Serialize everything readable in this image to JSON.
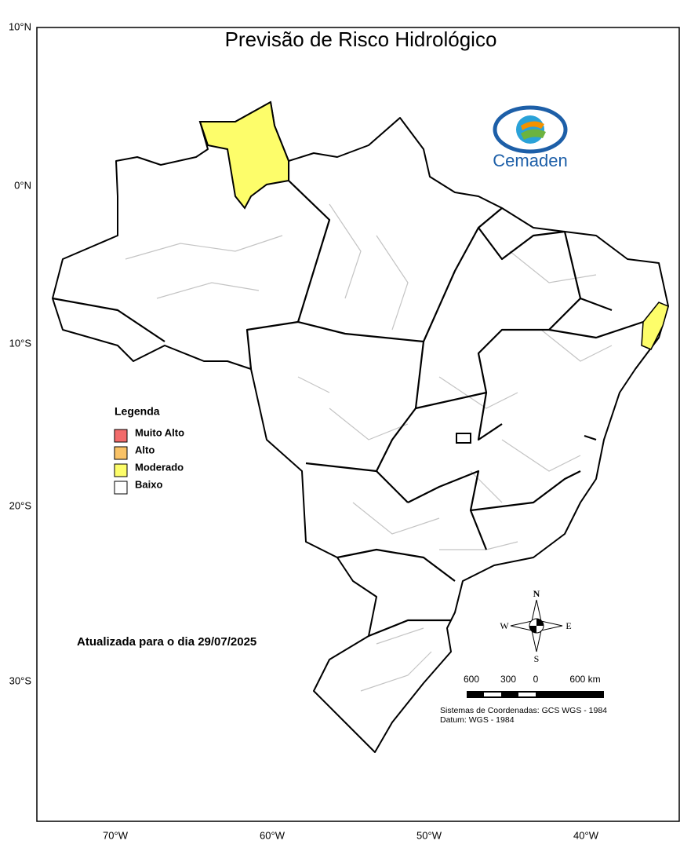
{
  "title": "Previsão de Risco Hidrológico",
  "logo": "Cemaden",
  "latitude_labels": [
    "10°N",
    "0°N",
    "10°S",
    "20°S",
    "30°S"
  ],
  "longitude_labels": [
    "70°W",
    "60°W",
    "50°W",
    "40°W"
  ],
  "legend": {
    "title": "Legenda",
    "items": [
      {
        "label": "Muito Alto",
        "color": "#f26b6b"
      },
      {
        "label": "Alto",
        "color": "#f9c266"
      },
      {
        "label": "Moderado",
        "color": "#fdfd6a"
      },
      {
        "label": "Baixo",
        "color": "#ffffff"
      }
    ]
  },
  "update_note": "Atualizada para o  dia 29/07/2025",
  "compass": {
    "north": "N",
    "east": "E",
    "south": "S",
    "west": "W"
  },
  "scale_labels": [
    "600",
    "300",
    "0",
    "600 km"
  ],
  "coordinate_system": "Sistemas de Coordenadas: GCS WGS - 1984",
  "datum": "Datum: WGS - 1984"
}
